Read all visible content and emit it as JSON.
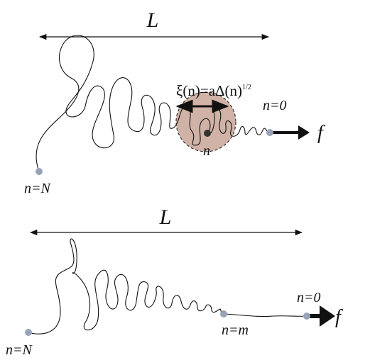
{
  "top": {
    "length_label": "L",
    "blob_label": {
      "text": "ξ(n)=aΔ(n)",
      "exponent": "1/2"
    },
    "end_label": "n=0",
    "force_label": "f",
    "monomer_label": "n",
    "start_label": "n=N"
  },
  "bottom": {
    "length_label": "L",
    "end_label": "n=0",
    "force_label": "f",
    "middle_label": "n=m",
    "start_label": "n=N"
  }
}
